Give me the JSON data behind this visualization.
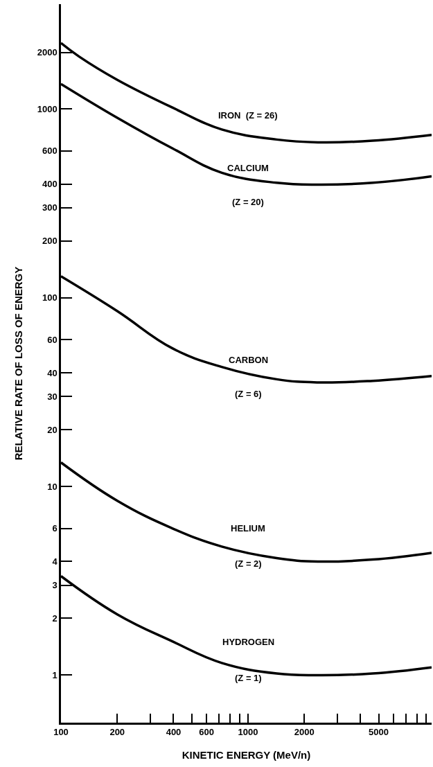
{
  "chart_data": {
    "type": "line",
    "xlabel": "KINETIC ENERGY (MeV/n)",
    "ylabel": "RELATIVE RATE OF LOSS OF ENERGY",
    "log": "xy",
    "marker": "none",
    "line_style": "solid",
    "xlim": [
      100,
      9600
    ],
    "ylim": [
      0.56,
      3600
    ],
    "xticks": [
      100,
      200,
      {
        "value": 300,
        "label": null
      },
      400,
      {
        "value": 500,
        "label": null
      },
      600,
      {
        "value": 700,
        "label": null
      },
      {
        "value": 800,
        "label": null
      },
      {
        "value": 900,
        "label": null
      },
      1000,
      2000,
      {
        "value": 3000,
        "label": null
      },
      {
        "value": 4000,
        "label": null
      },
      5000,
      {
        "value": 6000,
        "label": null
      },
      {
        "value": 7000,
        "label": null
      },
      {
        "value": 8000,
        "label": null
      },
      {
        "value": 9000,
        "label": null
      }
    ],
    "yticks": [
      1,
      2,
      3,
      4,
      6,
      10,
      20,
      30,
      40,
      60,
      100,
      200,
      300,
      400,
      600,
      1000,
      2000
    ],
    "series": [
      {
        "color": "#000000",
        "x": [
          100,
          125,
          200,
          394,
          725,
          1424,
          2366,
          4650,
          9600
        ],
        "values": [
          2240,
          1900,
          1430,
          1020,
          780,
          690,
          667,
          680,
          730
        ]
      },
      {
        "color": "#000000",
        "x": [
          100,
          200,
          394,
          725,
          1424,
          2366,
          4650,
          9600
        ],
        "values": [
          1360,
          900,
          620,
          460,
          407,
          398,
          407,
          440
        ]
      },
      {
        "color": "#000000",
        "x": [
          100,
          200,
          394,
          725,
          1424,
          2366,
          4650,
          9600
        ],
        "values": [
          130,
          85,
          54,
          43,
          37,
          35.6,
          36.3,
          38.5
        ]
      },
      {
        "color": "#000000",
        "x": [
          100,
          200,
          394,
          725,
          1424,
          2366,
          4650,
          9600
        ],
        "values": [
          13.4,
          8.4,
          6.0,
          4.8,
          4.17,
          4.0,
          4.1,
          4.45
        ]
      },
      {
        "color": "#000000",
        "x": [
          100,
          200,
          394,
          725,
          1424,
          2366,
          4650,
          9600
        ],
        "values": [
          3.35,
          2.1,
          1.51,
          1.16,
          1.02,
          1.0,
          1.02,
          1.1
        ]
      }
    ],
    "annotations": [
      "IRON  (Z = 26)",
      "CALCIUM",
      "(Z = 20)",
      "CARBON",
      "(Z = 6)",
      "HELIUM",
      "(Z = 2)",
      "HYDROGEN",
      "(Z = 1)"
    ]
  }
}
